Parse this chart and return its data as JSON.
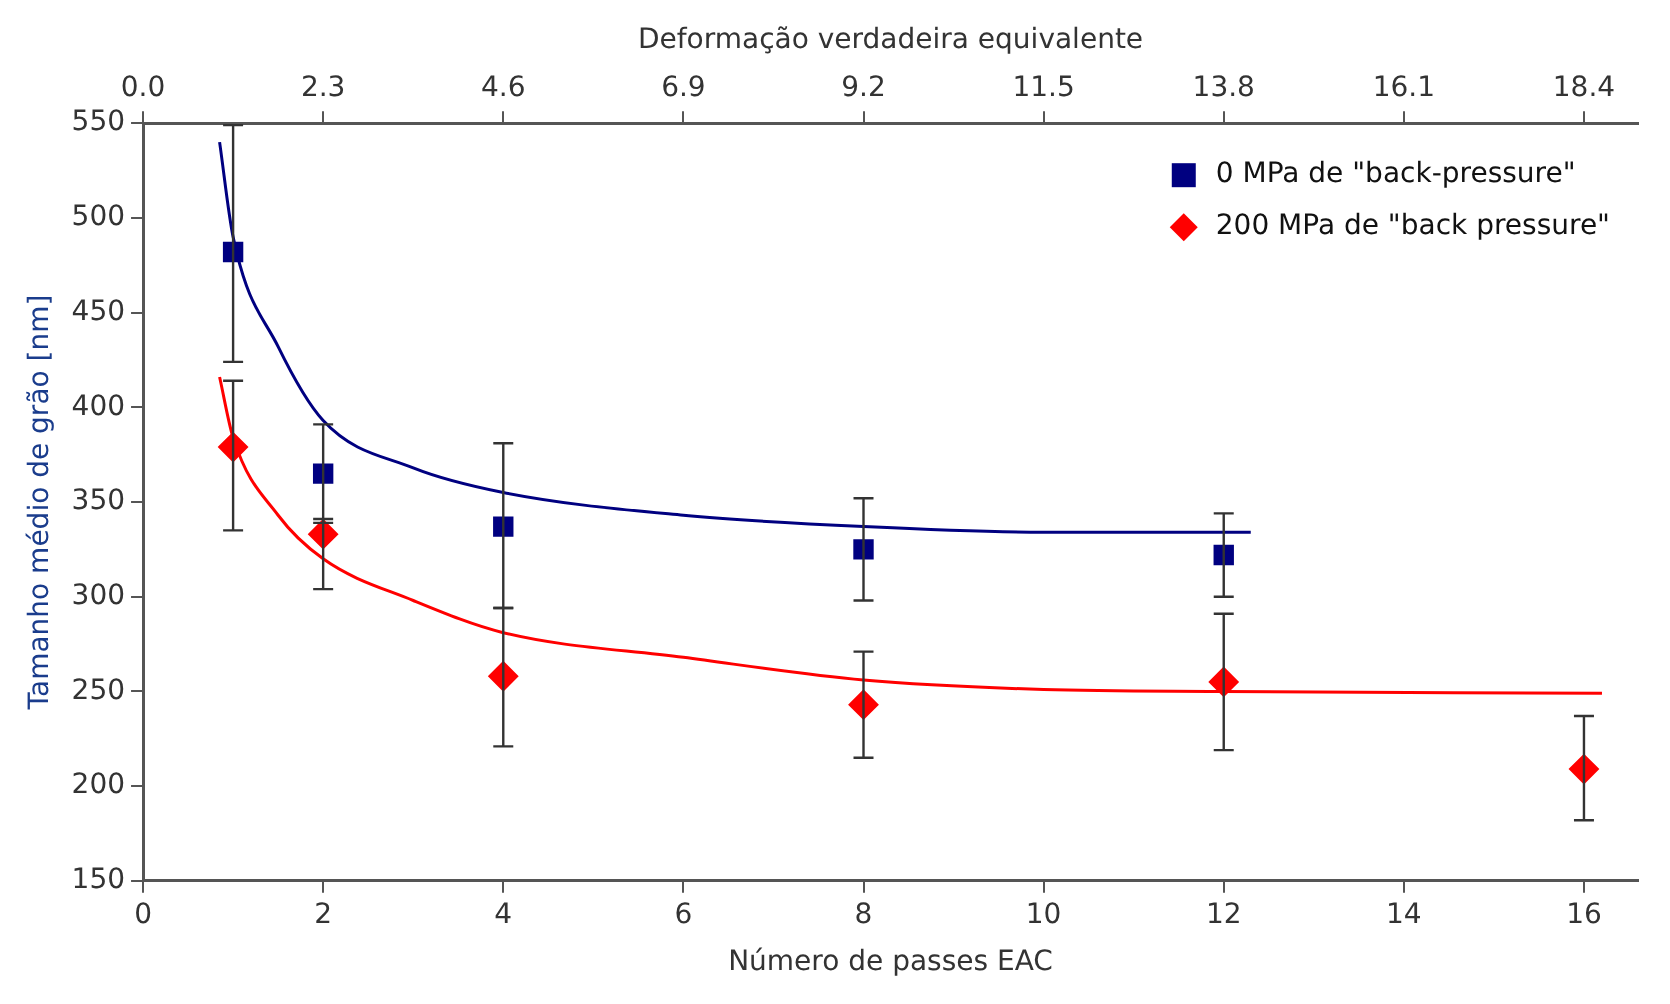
{
  "chart_data": {
    "type": "scatter",
    "xlabel": "Número de passes EAC",
    "x2label": "Deformação verdadeira equivalente",
    "ylabel": "Tamanho médio de grão [nm]",
    "xlim": [
      0,
      16.6
    ],
    "xticks": [
      0,
      2,
      4,
      6,
      8,
      10,
      12,
      14,
      16
    ],
    "x2lim": [
      0,
      19.09
    ],
    "x2ticks": [
      {
        "value": 0,
        "label": "0.0"
      },
      2.3,
      4.6,
      6.9,
      9.2,
      11.5,
      13.8,
      16.1,
      18.4
    ],
    "ylim": [
      150,
      550
    ],
    "yticks": [
      150,
      200,
      250,
      300,
      350,
      400,
      450,
      500,
      550
    ],
    "grid": false,
    "legend": "top right",
    "series": [
      {
        "name": "0 MPa de \"back-pressure\"",
        "marker": "square",
        "color": "#000080",
        "x": [
          1,
          2,
          4,
          8,
          12
        ],
        "values": [
          482,
          365,
          337,
          325,
          322
        ],
        "errors": [
          [
            424,
            549
          ],
          [
            339,
            391
          ],
          [
            294,
            381
          ],
          [
            298,
            352
          ],
          [
            300,
            344
          ]
        ]
      },
      {
        "name": "200 MPa de \"back pressure\"",
        "marker": "diamond",
        "color": "#ff0000",
        "x": [
          1,
          2,
          4,
          8,
          12,
          16
        ],
        "values": [
          379,
          333,
          258,
          243,
          255,
          209
        ],
        "errors": [
          [
            335,
            414
          ],
          [
            304,
            341
          ],
          [
            221,
            294
          ],
          [
            215,
            271
          ],
          [
            219,
            291
          ],
          [
            182,
            237
          ]
        ]
      },
      {
        "type": "line",
        "marker": "none",
        "color": "#000080",
        "x": [
          0.85,
          1,
          1.5,
          2,
          3,
          4,
          6,
          8,
          10,
          12.3
        ],
        "values": [
          540,
          490,
          432,
          393,
          368,
          355,
          343,
          337,
          334,
          334
        ]
      },
      {
        "type": "line",
        "marker": "none",
        "color": "#ff0000",
        "x": [
          0.85,
          1,
          1.5,
          2,
          3,
          4,
          6,
          8,
          10,
          12,
          16.2
        ],
        "values": [
          416,
          384,
          343,
          320,
          298,
          281,
          268,
          256,
          251,
          250,
          249
        ]
      }
    ]
  }
}
